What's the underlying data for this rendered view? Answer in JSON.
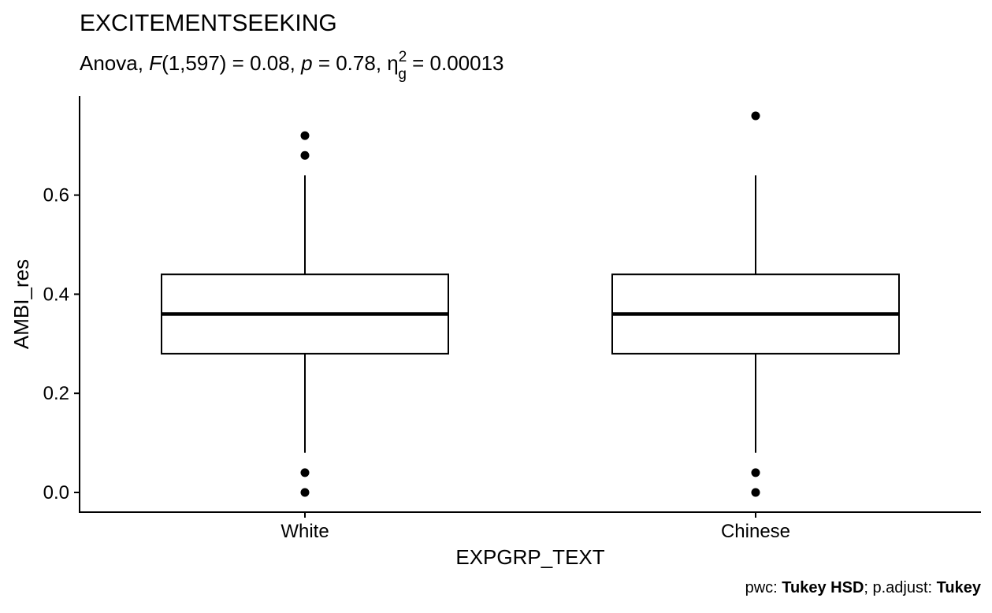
{
  "chart_data": {
    "type": "boxplot",
    "title": "EXCITEMENTSEEKING",
    "subtitle": {
      "prefix": "Anova, ",
      "F_symbol": "F",
      "df": "(1,597) = 0.08, ",
      "p_symbol": "p",
      "p_value": " = 0.78, ",
      "eta_symbol": "η",
      "eta_sup": "2",
      "eta_sub": "g",
      "eta_value": " = 0.00013"
    },
    "xlabel": "EXPGRP_TEXT",
    "ylabel": "AMBI_res",
    "ylim": [
      -0.04,
      0.8
    ],
    "yticks": [
      0.0,
      0.2,
      0.4,
      0.6
    ],
    "ytick_labels": [
      "0.0",
      "0.2",
      "0.4",
      "0.6"
    ],
    "categories": [
      "White",
      "Chinese"
    ],
    "boxes": [
      {
        "category": "White",
        "whisker_low": 0.08,
        "q1": 0.28,
        "median": 0.36,
        "q3": 0.44,
        "whisker_high": 0.64,
        "outliers": [
          0.0,
          0.04,
          0.68,
          0.72
        ]
      },
      {
        "category": "Chinese",
        "whisker_low": 0.08,
        "q1": 0.28,
        "median": 0.36,
        "q3": 0.44,
        "whisker_high": 0.64,
        "outliers": [
          0.0,
          0.04,
          0.76
        ]
      }
    ],
    "grid": false,
    "caption": {
      "pwc_label": "pwc: ",
      "pwc_value": "Tukey HSD",
      "adjust_label": "; p.adjust: ",
      "adjust_value": "Tukey"
    }
  }
}
